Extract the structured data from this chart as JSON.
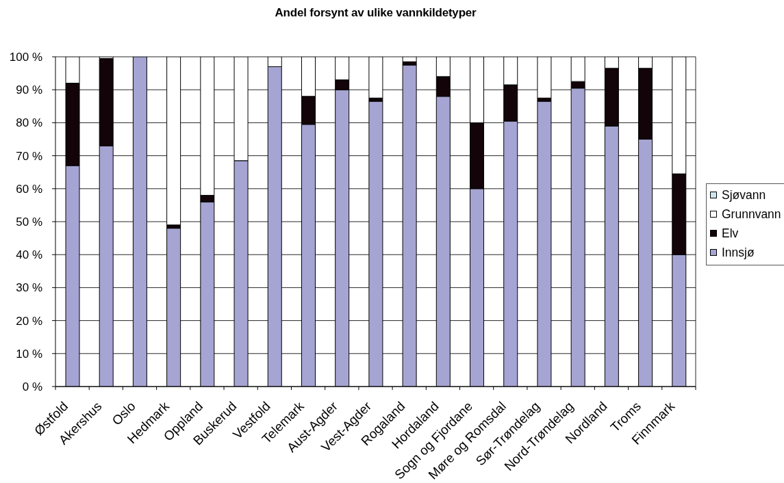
{
  "chart_data": {
    "type": "bar",
    "title": "Andel forsynt av ulike vannkildetyper",
    "categories": [
      "Østfold",
      "Akershus",
      "Oslo",
      "Hedmark",
      "Oppland",
      "Buskerud",
      "Vestfold",
      "Telemark",
      "Aust-Agder",
      "Vest-Agder",
      "Rogaland",
      "Hordaland",
      "Sogn og Fjordane",
      "Møre og Romsdal",
      "Sør-Trøndelag",
      "Nord-Trøndelag",
      "Nordland",
      "Troms",
      "Finnmark"
    ],
    "stacked": true,
    "series": [
      {
        "name": "Innsjø",
        "color": "#a5a4d2",
        "values": [
          67,
          73,
          100,
          48,
          56,
          68.5,
          97,
          79.5,
          90,
          86.5,
          97.5,
          88,
          60,
          80.5,
          86.5,
          90.5,
          79,
          75,
          40
        ]
      },
      {
        "name": "Elv",
        "color": "#120408",
        "values": [
          25,
          26.5,
          0,
          1,
          2,
          0,
          0,
          8.5,
          3,
          1,
          1,
          6,
          20,
          11,
          1,
          2,
          17.5,
          21.5,
          24.5
        ]
      },
      {
        "name": "Grunnvann",
        "color": "#ffffff",
        "values": [
          8,
          0.5,
          0,
          51,
          42,
          31.5,
          3,
          12,
          7,
          12.5,
          1.5,
          6,
          20,
          8.5,
          12.5,
          7.5,
          3.5,
          3.5,
          35.5
        ]
      },
      {
        "name": "Sjøvann",
        "color": "#cce6ee",
        "values": [
          0,
          0,
          0,
          0,
          0,
          0,
          0,
          0,
          0,
          0,
          0,
          0,
          0,
          0,
          0,
          0,
          0,
          0,
          0
        ]
      }
    ],
    "ylim": [
      0,
      100
    ],
    "yticks": [
      {
        "value": 0,
        "label": "0 %"
      },
      {
        "value": 10,
        "label": "10 %"
      },
      {
        "value": 20,
        "label": "20 %"
      },
      {
        "value": 30,
        "label": "30 %"
      },
      {
        "value": 40,
        "label": "40 %"
      },
      {
        "value": 50,
        "label": "50 %"
      },
      {
        "value": 60,
        "label": "60 %"
      },
      {
        "value": 70,
        "label": "70 %"
      },
      {
        "value": 80,
        "label": "80 %"
      },
      {
        "value": 90,
        "label": "90 %"
      },
      {
        "value": 100,
        "label": "100 %"
      }
    ],
    "grid": "y",
    "legend": "right"
  }
}
